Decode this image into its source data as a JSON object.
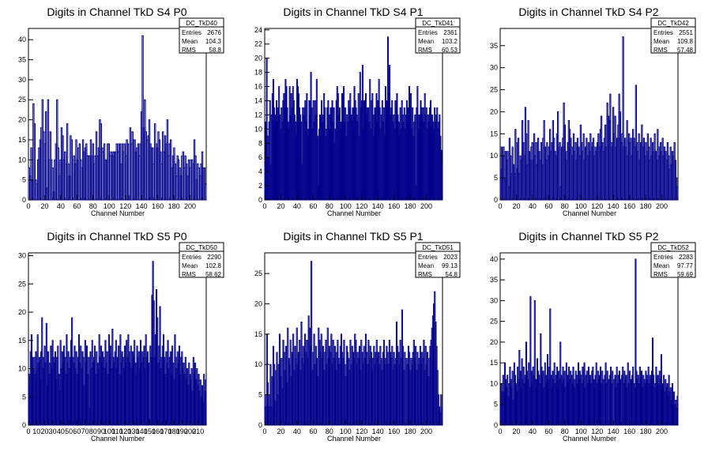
{
  "chart_data": [
    {
      "type": "bar",
      "title": "Digits in Channel TkD S4 P0",
      "xlabel": "Channel Number",
      "ylabel": "",
      "xlim": [
        0,
        220
      ],
      "ylim": [
        0,
        42.8
      ],
      "xticks": [
        0,
        20,
        40,
        60,
        80,
        100,
        120,
        140,
        160,
        180,
        200
      ],
      "yticks": [
        0,
        5,
        10,
        15,
        20,
        25,
        30,
        35,
        40
      ],
      "stats": {
        "name": "DC_TkD40",
        "rows": [
          [
            "Entries",
            "2676"
          ],
          [
            "Mean",
            "104.3"
          ],
          [
            "RMS",
            "58.8"
          ]
        ]
      },
      "values": [
        8,
        6,
        13,
        5,
        24,
        19,
        5,
        4,
        10,
        13,
        15,
        18,
        25,
        17,
        14,
        22,
        3,
        25,
        10,
        17,
        10,
        8,
        2,
        10,
        14,
        25,
        13,
        6,
        10,
        18,
        16,
        10,
        12,
        9,
        19,
        9,
        6,
        16,
        15,
        10,
        11,
        9,
        15,
        10,
        13,
        14,
        10,
        8,
        15,
        12,
        13,
        14,
        11,
        11,
        11,
        15,
        11,
        14,
        9,
        11,
        17,
        11,
        13,
        20,
        19,
        13,
        12,
        14,
        10,
        10,
        14,
        14,
        11,
        12,
        11,
        12,
        12,
        12,
        14,
        12,
        14,
        14,
        9,
        14,
        12,
        14,
        11,
        15,
        14,
        1,
        18,
        14,
        17,
        15,
        15,
        12,
        13,
        14,
        11,
        14,
        22,
        41,
        18,
        25,
        17,
        15,
        16,
        20,
        14,
        13,
        13,
        9,
        19,
        14,
        13,
        17,
        15,
        12,
        9,
        17,
        12,
        16,
        14,
        20,
        11,
        14,
        15,
        8,
        11,
        13,
        9,
        6,
        11,
        10,
        8,
        6,
        11,
        12,
        8,
        11,
        9,
        6,
        10,
        8,
        10,
        10,
        9,
        15,
        11,
        5,
        9,
        8,
        6,
        9,
        12,
        8,
        8,
        4
      ]
    },
    {
      "type": "bar",
      "title": "Digits in Channel TkD S4 P1",
      "xlabel": "Channel Number",
      "ylabel": "",
      "xlim": [
        0,
        220
      ],
      "ylim": [
        0,
        24.2
      ],
      "xticks": [
        0,
        20,
        40,
        60,
        80,
        100,
        120,
        140,
        160,
        180,
        200
      ],
      "yticks": [
        0,
        2,
        4,
        6,
        8,
        10,
        12,
        14,
        16,
        18,
        20,
        22,
        24
      ],
      "stats": {
        "name": "DC_TkD41",
        "rows": [
          [
            "Entries",
            "2361"
          ],
          [
            "Mean",
            "103.2"
          ],
          [
            "RMS",
            "60.53"
          ]
        ]
      },
      "values": [
        5,
        11,
        20,
        9,
        6,
        11,
        14,
        5,
        12,
        15,
        17,
        13,
        11,
        12,
        14,
        11,
        13,
        16,
        12,
        10,
        13,
        11,
        14,
        15,
        13,
        17,
        16,
        13,
        11,
        10,
        16,
        12,
        15,
        13,
        16,
        14,
        12,
        11,
        9,
        17,
        16,
        15,
        13,
        12,
        11,
        5,
        13,
        12,
        13,
        14,
        11,
        15,
        9,
        10,
        14,
        12,
        18,
        13,
        10,
        14,
        11,
        14,
        12,
        17,
        9,
        2,
        10,
        12,
        9,
        14,
        11,
        12,
        15,
        13,
        9,
        10,
        13,
        14,
        10,
        12,
        13,
        12,
        14,
        11,
        13,
        8,
        10,
        14,
        16,
        15,
        12,
        13,
        11,
        10,
        15,
        12,
        16,
        11,
        13,
        9,
        12,
        11,
        14,
        13,
        15,
        12,
        11,
        13,
        10,
        16,
        14,
        13,
        12,
        11,
        15,
        9,
        18,
        13,
        14,
        19,
        10,
        14,
        11,
        15,
        12,
        13,
        13,
        11,
        17,
        10,
        14,
        15,
        9,
        12,
        13,
        10,
        15,
        11,
        14,
        17,
        13,
        10,
        12,
        14,
        11,
        13,
        9,
        16,
        12,
        14,
        23,
        15,
        19,
        12,
        13,
        14,
        11,
        12,
        10,
        14,
        13,
        15,
        12,
        11,
        9,
        13,
        10,
        14,
        12,
        11,
        13,
        10,
        12,
        14,
        13,
        11,
        16,
        12,
        15,
        10,
        13,
        9,
        11,
        12,
        2,
        13,
        16,
        10,
        12,
        11,
        14,
        13,
        12,
        13,
        11,
        15,
        12,
        13,
        10,
        12,
        11,
        13,
        14,
        9,
        12,
        11,
        10,
        13,
        11,
        12,
        13,
        10,
        11,
        12,
        9,
        7,
        5
      ]
    },
    {
      "type": "bar",
      "title": "Digits in Channel TkD S4 P2",
      "xlabel": "Channel Number",
      "ylabel": "",
      "xlim": [
        0,
        220
      ],
      "ylim": [
        0,
        38.9
      ],
      "xticks": [
        0,
        20,
        40,
        60,
        80,
        100,
        120,
        140,
        160,
        180,
        200
      ],
      "yticks": [
        0,
        5,
        10,
        15,
        20,
        25,
        30,
        35
      ],
      "stats": {
        "name": "DC_TkD42",
        "rows": [
          [
            "Entries",
            "2551"
          ],
          [
            "Mean",
            "109.8"
          ],
          [
            "RMS",
            "57.48"
          ]
        ]
      },
      "values": [
        7,
        12,
        10,
        12,
        5,
        11,
        9,
        11,
        3,
        14,
        10,
        6,
        12,
        8,
        6,
        16,
        13,
        7,
        14,
        6,
        10,
        9,
        18,
        13,
        10,
        21,
        15,
        8,
        18,
        11,
        9,
        12,
        13,
        9,
        15,
        10,
        13,
        8,
        14,
        11,
        9,
        13,
        8,
        14,
        18,
        12,
        9,
        13,
        10,
        12,
        16,
        11,
        13,
        18,
        14,
        11,
        10,
        15,
        20,
        12,
        13,
        3,
        12,
        14,
        22,
        17,
        9,
        11,
        13,
        18,
        16,
        14,
        10,
        12,
        15,
        11,
        13,
        9,
        14,
        12,
        10,
        17,
        13,
        11,
        15,
        9,
        12,
        14,
        10,
        13,
        11,
        15,
        12,
        13,
        14,
        10,
        12,
        11,
        13,
        15,
        12,
        16,
        19,
        13,
        11,
        14,
        17,
        12,
        22,
        19,
        18,
        24,
        13,
        12,
        21,
        15,
        19,
        12,
        14,
        17,
        24,
        20,
        13,
        15,
        37,
        12,
        14,
        12,
        18,
        10,
        15,
        13,
        14,
        10,
        16,
        14,
        12,
        26,
        13,
        11,
        15,
        9,
        13,
        17,
        12,
        14,
        10,
        13,
        11,
        15,
        12,
        9,
        14,
        10,
        13,
        11,
        15,
        11,
        9,
        16,
        12,
        10,
        13,
        11,
        14,
        10,
        12,
        11,
        9,
        13,
        10,
        7,
        12,
        8,
        11,
        10,
        13,
        9,
        5,
        3
      ]
    },
    {
      "type": "bar",
      "title": "Digits in Channel TkD S5 P0",
      "xlabel": "Channel Number",
      "ylabel": "",
      "xlim": [
        0,
        220
      ],
      "ylim": [
        0,
        30.5
      ],
      "xticks": [
        0,
        10,
        20,
        30,
        40,
        50,
        60,
        70,
        80,
        90,
        100,
        110,
        120,
        130,
        140,
        150,
        160,
        170,
        180,
        190,
        200,
        210
      ],
      "yticks": [
        0,
        5,
        10,
        15,
        20,
        25,
        30
      ],
      "stats": {
        "name": "DC_TkD50",
        "rows": [
          [
            "Entries",
            "2290"
          ],
          [
            "Mean",
            "102.8"
          ],
          [
            "RMS",
            "58.62"
          ]
        ]
      },
      "values": [
        7,
        9,
        13,
        16,
        12,
        10,
        12,
        9,
        13,
        10,
        16,
        11,
        12,
        8,
        13,
        19,
        10,
        12,
        14,
        11,
        18,
        7,
        13,
        9,
        11,
        14,
        10,
        15,
        12,
        11,
        13,
        8,
        12,
        14,
        9,
        6,
        15,
        10,
        13,
        11,
        14,
        12,
        9,
        16,
        11,
        13,
        10,
        12,
        15,
        19,
        12,
        11,
        14,
        10,
        13,
        9,
        12,
        16,
        11,
        14,
        10,
        13,
        12,
        7,
        15,
        11,
        14,
        9,
        12,
        3,
        13,
        10,
        15,
        11,
        12,
        14,
        9,
        13,
        11,
        10,
        16,
        12,
        14,
        11,
        13,
        12,
        10,
        15,
        11,
        13,
        9,
        16,
        12,
        14,
        10,
        17,
        12,
        11,
        13,
        15,
        10,
        12,
        14,
        9,
        16,
        11,
        13,
        12,
        10,
        14,
        11,
        15,
        12,
        16,
        13,
        11,
        14,
        10,
        13,
        12,
        15,
        11,
        9,
        14,
        12,
        13,
        10,
        15,
        11,
        13,
        12,
        14,
        10,
        16,
        12,
        13,
        11,
        1,
        14,
        12,
        23,
        29,
        22,
        12,
        16,
        24,
        19,
        11,
        14,
        21,
        10,
        12,
        14,
        16,
        12,
        9,
        13,
        11,
        15,
        10,
        12,
        13,
        9,
        14,
        11,
        8,
        16,
        12,
        10,
        13,
        11,
        14,
        9,
        12,
        13,
        10,
        11,
        9,
        12,
        8,
        10,
        7,
        11,
        9,
        8,
        10,
        6,
        12,
        9,
        11,
        8,
        10,
        7,
        9,
        6,
        8,
        5,
        7,
        4,
        9,
        6,
        8
      ]
    },
    {
      "type": "bar",
      "title": "Digits in Channel TkD S5 P1",
      "xlabel": "Channel Number",
      "ylabel": "",
      "xlim": [
        0,
        220
      ],
      "ylim": [
        0,
        28.4
      ],
      "xticks": [
        0,
        20,
        40,
        60,
        80,
        100,
        120,
        140,
        160,
        180,
        200
      ],
      "yticks": [
        0,
        5,
        10,
        15,
        20,
        25
      ],
      "stats": {
        "name": "DC_TkD51",
        "rows": [
          [
            "Entries",
            "2023"
          ],
          [
            "Mean",
            "99.13"
          ],
          [
            "RMS",
            "54.8"
          ]
        ]
      },
      "values": [
        5,
        3,
        15,
        7,
        3,
        5,
        10,
        3,
        8,
        13,
        10,
        4,
        9,
        12,
        5,
        10,
        15,
        8,
        11,
        6,
        14,
        12,
        9,
        13,
        7,
        16,
        11,
        10,
        14,
        8,
        12,
        15,
        9,
        13,
        11,
        16,
        10,
        12,
        14,
        9,
        17,
        11,
        13,
        10,
        15,
        12,
        14,
        11,
        18,
        16,
        13,
        27,
        9,
        12,
        15,
        10,
        13,
        11,
        8,
        16,
        14,
        12,
        15,
        11,
        13,
        9,
        12,
        14,
        10,
        16,
        11,
        13,
        12,
        15,
        10,
        14,
        11,
        13,
        9,
        12,
        14,
        11,
        10,
        13,
        15,
        12,
        11,
        14,
        10,
        8,
        13,
        12,
        11,
        9,
        14,
        10,
        13,
        12,
        11,
        15,
        14,
        10,
        12,
        11,
        13,
        9,
        14,
        12,
        10,
        13,
        11,
        15,
        12,
        10,
        14,
        11,
        13,
        12,
        9,
        11,
        13,
        10,
        12,
        14,
        11,
        12,
        10,
        13,
        11,
        9,
        12,
        14,
        10,
        11,
        13,
        12,
        10,
        14,
        12,
        11,
        13,
        9,
        12,
        10,
        11,
        17,
        13,
        12,
        10,
        14,
        11,
        19,
        13,
        9,
        12,
        0,
        11,
        10,
        13,
        12,
        9,
        11,
        10,
        12,
        14,
        11,
        13,
        9,
        12,
        10,
        11,
        13,
        10,
        12,
        11,
        14,
        9,
        13,
        10,
        12,
        8,
        11,
        13,
        14,
        16,
        18,
        20,
        22,
        17,
        13,
        9,
        5,
        3,
        2,
        5,
        3
      ]
    },
    {
      "type": "bar",
      "title": "Digits in Channel TkD S5 P2",
      "xlabel": "Channel Number",
      "ylabel": "",
      "xlim": [
        0,
        220
      ],
      "ylim": [
        0,
        41.5
      ],
      "xticks": [
        0,
        20,
        40,
        60,
        80,
        100,
        120,
        140,
        160,
        180,
        200
      ],
      "yticks": [
        0,
        5,
        10,
        15,
        20,
        25,
        30,
        35,
        40
      ],
      "stats": {
        "name": "DC_TkD52",
        "rows": [
          [
            "Entries",
            "2283"
          ],
          [
            "Mean",
            "97.77"
          ],
          [
            "RMS",
            "59.69"
          ]
        ]
      },
      "values": [
        5,
        10,
        8,
        12,
        8,
        15,
        11,
        9,
        12,
        7,
        10,
        14,
        11,
        9,
        13,
        6,
        15,
        12,
        10,
        8,
        14,
        11,
        18,
        13,
        9,
        16,
        11,
        14,
        10,
        12,
        20,
        13,
        11,
        15,
        9,
        31,
        13,
        10,
        14,
        12,
        30,
        11,
        9,
        16,
        13,
        12,
        10,
        22,
        14,
        11,
        13,
        9,
        15,
        12,
        10,
        17,
        11,
        14,
        28,
        12,
        9,
        13,
        11,
        15,
        10,
        12,
        14,
        9,
        13,
        11,
        20,
        12,
        10,
        14,
        11,
        13,
        9,
        15,
        12,
        10,
        14,
        11,
        13,
        12,
        10,
        14,
        11,
        9,
        13,
        12,
        10,
        15,
        11,
        13,
        12,
        10,
        14,
        11,
        15,
        9,
        12,
        13,
        10,
        14,
        11,
        12,
        10,
        13,
        14,
        11,
        9,
        12,
        15,
        10,
        13,
        11,
        12,
        14,
        10,
        13,
        11,
        0,
        12,
        15,
        10,
        13,
        11,
        0,
        12,
        14,
        10,
        13,
        0,
        11,
        12,
        9,
        14,
        10,
        12,
        13,
        11,
        0,
        12,
        14,
        10,
        13,
        11,
        12,
        9,
        15,
        10,
        13,
        0,
        11,
        12,
        14,
        10,
        9,
        40,
        13,
        11,
        12,
        10,
        14,
        11,
        13,
        9,
        12,
        11,
        10,
        13,
        12,
        11,
        14,
        10,
        12,
        11,
        13,
        21,
        12,
        9,
        10,
        14,
        11,
        12,
        10,
        13,
        11,
        17,
        9,
        10,
        12,
        8,
        11,
        9,
        10,
        7,
        12,
        8,
        9,
        6,
        10,
        7,
        8,
        5,
        6,
        4,
        7
      ]
    }
  ]
}
